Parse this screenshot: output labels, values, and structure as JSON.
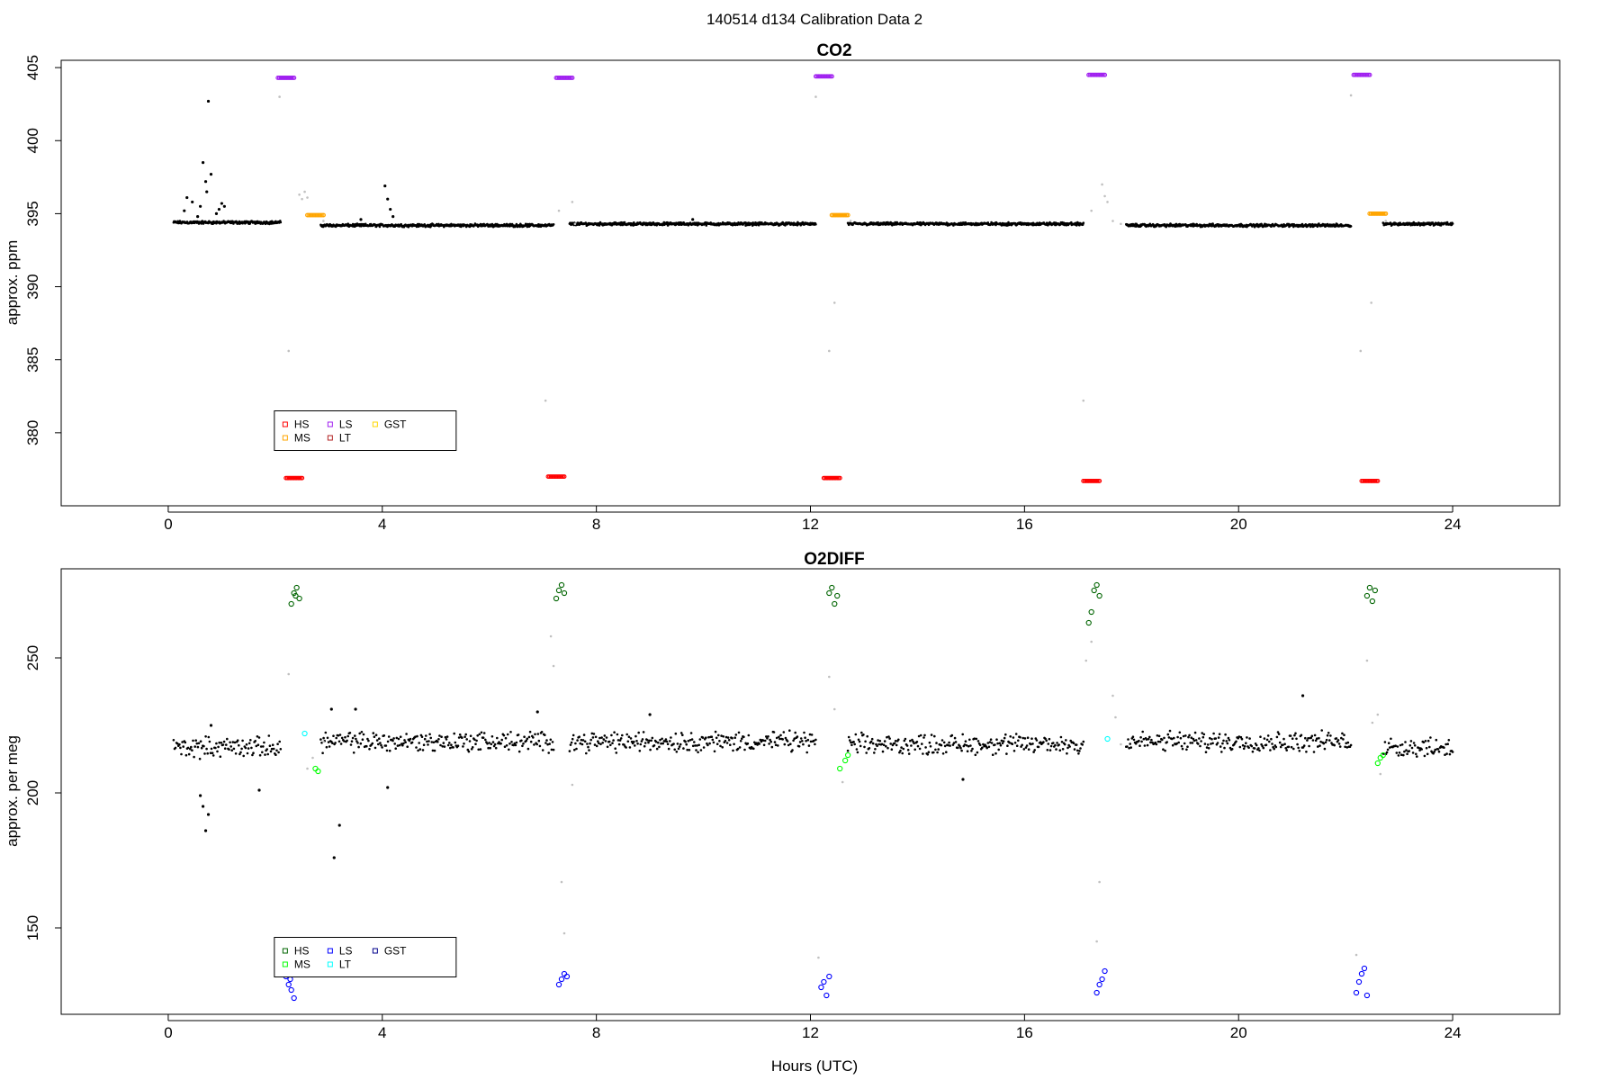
{
  "page": {
    "supertitle": "140514   d134   Calibration Data 2"
  },
  "chart_data": [
    {
      "type": "scatter",
      "title": "CO2",
      "xlabel": "",
      "ylabel": "approx. ppm",
      "xlim": [
        -2,
        26
      ],
      "ylim": [
        375,
        405.5
      ],
      "xticks": [
        0,
        4,
        8,
        12,
        16,
        20,
        24
      ],
      "yticks": [
        380,
        385,
        390,
        395,
        400,
        405
      ],
      "legend": {
        "placement": "bottom-left",
        "entries": [
          {
            "label": "HS",
            "color": "#ff0000"
          },
          {
            "label": "MS",
            "color": "#ffa500"
          },
          {
            "label": "LS",
            "color": "#a020f0"
          },
          {
            "label": "LT",
            "color": "#b22222"
          },
          {
            "label": "GST",
            "color": "#ffd700"
          }
        ]
      },
      "baseline": {
        "color": "#000000",
        "segments": [
          {
            "from": 0.1,
            "to": 2.1,
            "level": 394.4
          },
          {
            "from": 2.85,
            "to": 7.2,
            "level": 394.2
          },
          {
            "from": 7.5,
            "to": 12.1,
            "level": 394.3
          },
          {
            "from": 12.7,
            "to": 17.1,
            "level": 394.3
          },
          {
            "from": 17.9,
            "to": 22.1,
            "level": 394.2
          },
          {
            "from": 22.7,
            "to": 24.0,
            "level": 394.3
          }
        ]
      },
      "spikes": [
        {
          "x": 0.3,
          "y": 395.2
        },
        {
          "x": 0.35,
          "y": 396.1
        },
        {
          "x": 0.45,
          "y": 395.8
        },
        {
          "x": 0.55,
          "y": 394.8
        },
        {
          "x": 0.6,
          "y": 395.5
        },
        {
          "x": 0.65,
          "y": 398.5
        },
        {
          "x": 0.7,
          "y": 397.2
        },
        {
          "x": 0.72,
          "y": 396.5
        },
        {
          "x": 0.75,
          "y": 402.7
        },
        {
          "x": 0.8,
          "y": 397.7
        },
        {
          "x": 0.9,
          "y": 395.0
        },
        {
          "x": 0.95,
          "y": 395.3
        },
        {
          "x": 1.0,
          "y": 395.7
        },
        {
          "x": 1.05,
          "y": 395.5
        },
        {
          "x": 4.05,
          "y": 396.9
        },
        {
          "x": 4.1,
          "y": 396.0
        },
        {
          "x": 4.15,
          "y": 395.3
        },
        {
          "x": 4.2,
          "y": 394.8
        },
        {
          "x": 3.6,
          "y": 394.6
        },
        {
          "x": 9.8,
          "y": 394.6
        }
      ],
      "transitions": {
        "color": "#c0c0c0",
        "points": [
          {
            "x": 2.08,
            "y": 403.0
          },
          {
            "x": 2.25,
            "y": 385.6
          },
          {
            "x": 2.45,
            "y": 396.3
          },
          {
            "x": 2.5,
            "y": 396.0
          },
          {
            "x": 2.55,
            "y": 396.5
          },
          {
            "x": 2.6,
            "y": 396.1
          },
          {
            "x": 2.9,
            "y": 394.5
          },
          {
            "x": 7.05,
            "y": 382.2
          },
          {
            "x": 7.3,
            "y": 395.2
          },
          {
            "x": 7.55,
            "y": 395.8
          },
          {
            "x": 7.6,
            "y": 394.3
          },
          {
            "x": 12.1,
            "y": 403.0
          },
          {
            "x": 12.35,
            "y": 385.6
          },
          {
            "x": 12.45,
            "y": 388.9
          },
          {
            "x": 12.75,
            "y": 394.5
          },
          {
            "x": 17.1,
            "y": 382.2
          },
          {
            "x": 17.25,
            "y": 395.2
          },
          {
            "x": 17.45,
            "y": 397.0
          },
          {
            "x": 17.5,
            "y": 396.2
          },
          {
            "x": 17.55,
            "y": 395.8
          },
          {
            "x": 17.65,
            "y": 394.5
          },
          {
            "x": 17.8,
            "y": 394.3
          },
          {
            "x": 22.1,
            "y": 403.1
          },
          {
            "x": 22.28,
            "y": 385.6
          },
          {
            "x": 22.48,
            "y": 388.9
          },
          {
            "x": 22.75,
            "y": 394.5
          }
        ]
      },
      "calibration_clusters": [
        {
          "label": "LS",
          "color": "#a020f0",
          "points": [
            {
              "x": 2.2,
              "y": 404.3
            },
            {
              "x": 7.4,
              "y": 404.3
            },
            {
              "x": 12.25,
              "y": 404.4
            },
            {
              "x": 17.35,
              "y": 404.5
            },
            {
              "x": 22.3,
              "y": 404.5
            }
          ]
        },
        {
          "label": "MS",
          "color": "#ffa500",
          "points": [
            {
              "x": 2.75,
              "y": 394.9
            },
            {
              "x": 12.55,
              "y": 394.9
            },
            {
              "x": 22.6,
              "y": 395.0
            }
          ]
        },
        {
          "label": "HS",
          "color": "#ff0000",
          "points": [
            {
              "x": 2.35,
              "y": 376.9
            },
            {
              "x": 7.25,
              "y": 377.0
            },
            {
              "x": 12.4,
              "y": 376.9
            },
            {
              "x": 17.25,
              "y": 376.7
            },
            {
              "x": 22.45,
              "y": 376.7
            }
          ]
        }
      ]
    },
    {
      "type": "scatter",
      "title": "O2DIFF",
      "xlabel": "Hours (UTC)",
      "ylabel": "approx. per meg",
      "xlim": [
        -2,
        26
      ],
      "ylim": [
        118,
        283
      ],
      "xticks": [
        0,
        4,
        8,
        12,
        16,
        20,
        24
      ],
      "yticks": [
        150,
        200,
        250
      ],
      "legend": {
        "placement": "bottom-left",
        "entries": [
          {
            "label": "HS",
            "color": "#006400"
          },
          {
            "label": "MS",
            "color": "#00ff00"
          },
          {
            "label": "LS",
            "color": "#0000ff"
          },
          {
            "label": "LT",
            "color": "#00ffff"
          },
          {
            "label": "GST",
            "color": "#00008b"
          }
        ]
      },
      "baseline": {
        "color": "#000000",
        "segments": [
          {
            "from": 0.1,
            "to": 2.1,
            "level": 217
          },
          {
            "from": 2.85,
            "to": 7.2,
            "level": 219
          },
          {
            "from": 7.5,
            "to": 12.1,
            "level": 219
          },
          {
            "from": 12.7,
            "to": 17.1,
            "level": 218
          },
          {
            "from": 17.9,
            "to": 22.1,
            "level": 219
          },
          {
            "from": 22.7,
            "to": 24.0,
            "level": 217
          }
        ]
      },
      "spikes": [
        {
          "x": 0.6,
          "y": 199
        },
        {
          "x": 0.65,
          "y": 195
        },
        {
          "x": 0.7,
          "y": 186
        },
        {
          "x": 0.75,
          "y": 192
        },
        {
          "x": 0.8,
          "y": 225
        },
        {
          "x": 1.7,
          "y": 201
        },
        {
          "x": 3.1,
          "y": 176
        },
        {
          "x": 3.2,
          "y": 188
        },
        {
          "x": 3.05,
          "y": 231
        },
        {
          "x": 3.5,
          "y": 231
        },
        {
          "x": 4.1,
          "y": 202
        },
        {
          "x": 6.9,
          "y": 230
        },
        {
          "x": 9.0,
          "y": 229
        },
        {
          "x": 14.85,
          "y": 205
        },
        {
          "x": 21.2,
          "y": 236
        }
      ],
      "transitions": {
        "color": "#c0c0c0",
        "points": [
          {
            "x": 2.25,
            "y": 244
          },
          {
            "x": 2.6,
            "y": 209
          },
          {
            "x": 2.7,
            "y": 213
          },
          {
            "x": 2.9,
            "y": 219
          },
          {
            "x": 7.15,
            "y": 258
          },
          {
            "x": 7.2,
            "y": 247
          },
          {
            "x": 7.35,
            "y": 167
          },
          {
            "x": 7.4,
            "y": 148
          },
          {
            "x": 7.55,
            "y": 203
          },
          {
            "x": 12.15,
            "y": 139
          },
          {
            "x": 12.35,
            "y": 243
          },
          {
            "x": 12.45,
            "y": 231
          },
          {
            "x": 12.6,
            "y": 204
          },
          {
            "x": 17.15,
            "y": 249
          },
          {
            "x": 17.25,
            "y": 256
          },
          {
            "x": 17.4,
            "y": 167
          },
          {
            "x": 17.35,
            "y": 145
          },
          {
            "x": 17.65,
            "y": 236
          },
          {
            "x": 17.7,
            "y": 228
          },
          {
            "x": 17.8,
            "y": 218
          },
          {
            "x": 22.2,
            "y": 140
          },
          {
            "x": 22.4,
            "y": 249
          },
          {
            "x": 22.5,
            "y": 226
          },
          {
            "x": 22.6,
            "y": 229
          },
          {
            "x": 22.65,
            "y": 207
          }
        ]
      },
      "calibration_clusters": [
        {
          "label": "HS",
          "color": "#006400",
          "points": [
            {
              "x": 2.3,
              "y": 270
            },
            {
              "x": 2.35,
              "y": 274
            },
            {
              "x": 2.4,
              "y": 276
            },
            {
              "x": 2.45,
              "y": 272
            },
            {
              "x": 2.38,
              "y": 273
            },
            {
              "x": 7.25,
              "y": 272
            },
            {
              "x": 7.3,
              "y": 275
            },
            {
              "x": 7.35,
              "y": 277
            },
            {
              "x": 7.4,
              "y": 274
            },
            {
              "x": 12.35,
              "y": 274
            },
            {
              "x": 12.4,
              "y": 276
            },
            {
              "x": 12.45,
              "y": 270
            },
            {
              "x": 12.5,
              "y": 273
            },
            {
              "x": 17.2,
              "y": 263
            },
            {
              "x": 17.25,
              "y": 267
            },
            {
              "x": 17.3,
              "y": 275
            },
            {
              "x": 17.35,
              "y": 277
            },
            {
              "x": 17.4,
              "y": 273
            },
            {
              "x": 22.4,
              "y": 273
            },
            {
              "x": 22.45,
              "y": 276
            },
            {
              "x": 22.5,
              "y": 271
            },
            {
              "x": 22.55,
              "y": 275
            }
          ]
        },
        {
          "label": "MS",
          "color": "#00ff00",
          "points": [
            {
              "x": 2.75,
              "y": 209
            },
            {
              "x": 2.8,
              "y": 208
            },
            {
              "x": 12.55,
              "y": 209
            },
            {
              "x": 12.65,
              "y": 212
            },
            {
              "x": 12.7,
              "y": 214
            },
            {
              "x": 22.6,
              "y": 211
            },
            {
              "x": 22.65,
              "y": 213
            },
            {
              "x": 22.7,
              "y": 214
            }
          ]
        },
        {
          "label": "LT",
          "color": "#00ffff",
          "points": [
            {
              "x": 2.55,
              "y": 222
            },
            {
              "x": 17.55,
              "y": 220
            }
          ]
        },
        {
          "label": "LS",
          "color": "#0000ff",
          "points": [
            {
              "x": 2.2,
              "y": 132
            },
            {
              "x": 2.25,
              "y": 129
            },
            {
              "x": 2.3,
              "y": 127
            },
            {
              "x": 2.35,
              "y": 124
            },
            {
              "x": 2.28,
              "y": 131
            },
            {
              "x": 7.3,
              "y": 129
            },
            {
              "x": 7.35,
              "y": 131
            },
            {
              "x": 7.4,
              "y": 133
            },
            {
              "x": 7.45,
              "y": 132
            },
            {
              "x": 12.2,
              "y": 128
            },
            {
              "x": 12.25,
              "y": 130
            },
            {
              "x": 12.3,
              "y": 125
            },
            {
              "x": 12.35,
              "y": 132
            },
            {
              "x": 17.35,
              "y": 126
            },
            {
              "x": 17.4,
              "y": 129
            },
            {
              "x": 17.45,
              "y": 131
            },
            {
              "x": 17.5,
              "y": 134
            },
            {
              "x": 22.2,
              "y": 126
            },
            {
              "x": 22.25,
              "y": 130
            },
            {
              "x": 22.3,
              "y": 133
            },
            {
              "x": 22.35,
              "y": 135
            },
            {
              "x": 22.4,
              "y": 125
            }
          ]
        }
      ]
    }
  ]
}
